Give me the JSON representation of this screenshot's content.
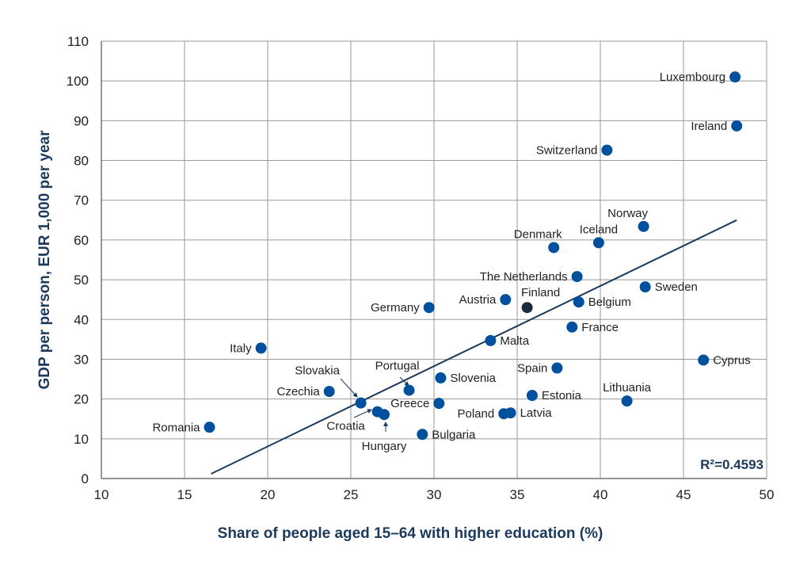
{
  "chart_data": {
    "type": "scatter",
    "xlabel": "Share of people aged 15–64 with higher education (%)",
    "ylabel": "GDP per person, EUR 1,000 per year",
    "xlim": [
      10,
      50
    ],
    "ylim": [
      0,
      110
    ],
    "xticks": [
      10,
      15,
      20,
      25,
      30,
      35,
      40,
      45,
      50
    ],
    "yticks": [
      0,
      10,
      20,
      30,
      40,
      50,
      60,
      70,
      80,
      90,
      100,
      110
    ],
    "grid": true,
    "r2_text": "R²=0.4593",
    "trendline": {
      "x": [
        16.6,
        48.2
      ],
      "y": [
        1.2,
        65.0
      ]
    },
    "colors": {
      "default": "#00509e",
      "highlight": "#1b2b3a",
      "trendline": "#1b3a5c",
      "grid": "#9a9a9a"
    },
    "points": [
      {
        "name": "Luxembourg",
        "x": 48.1,
        "y": 101.0
      },
      {
        "name": "Ireland",
        "x": 48.2,
        "y": 88.7
      },
      {
        "name": "Switzerland",
        "x": 40.4,
        "y": 82.6
      },
      {
        "name": "Norway",
        "x": 42.6,
        "y": 63.4
      },
      {
        "name": "Iceland",
        "x": 39.9,
        "y": 59.3
      },
      {
        "name": "Denmark",
        "x": 37.2,
        "y": 58.1
      },
      {
        "name": "The Netherlands",
        "x": 38.6,
        "y": 50.8
      },
      {
        "name": "Sweden",
        "x": 42.7,
        "y": 48.2
      },
      {
        "name": "Finland",
        "x": 35.6,
        "y": 43.0,
        "highlight": true
      },
      {
        "name": "Austria",
        "x": 34.3,
        "y": 45.0
      },
      {
        "name": "Germany",
        "x": 29.7,
        "y": 43.0
      },
      {
        "name": "Belgium",
        "x": 38.7,
        "y": 44.4
      },
      {
        "name": "France",
        "x": 38.3,
        "y": 38.1
      },
      {
        "name": "Malta",
        "x": 33.4,
        "y": 34.7
      },
      {
        "name": "Italy",
        "x": 19.6,
        "y": 32.8
      },
      {
        "name": "Cyprus",
        "x": 46.2,
        "y": 29.8
      },
      {
        "name": "Spain",
        "x": 37.4,
        "y": 27.8
      },
      {
        "name": "Slovenia",
        "x": 30.4,
        "y": 25.3
      },
      {
        "name": "Portugal",
        "x": 28.5,
        "y": 22.2
      },
      {
        "name": "Slovakia",
        "x": 25.6,
        "y": 19.0
      },
      {
        "name": "Czechia",
        "x": 23.7,
        "y": 21.9
      },
      {
        "name": "Greece",
        "x": 30.3,
        "y": 18.9
      },
      {
        "name": "Estonia",
        "x": 35.9,
        "y": 20.9
      },
      {
        "name": "Lithuania",
        "x": 41.6,
        "y": 19.5
      },
      {
        "name": "Poland",
        "x": 34.2,
        "y": 16.3
      },
      {
        "name": "Latvia",
        "x": 34.6,
        "y": 16.5
      },
      {
        "name": "Croatia",
        "x": 26.6,
        "y": 16.8
      },
      {
        "name": "Hungary",
        "x": 27.0,
        "y": 16.1
      },
      {
        "name": "Bulgaria",
        "x": 29.3,
        "y": 11.1
      },
      {
        "name": "Romania",
        "x": 16.5,
        "y": 12.9
      }
    ]
  }
}
